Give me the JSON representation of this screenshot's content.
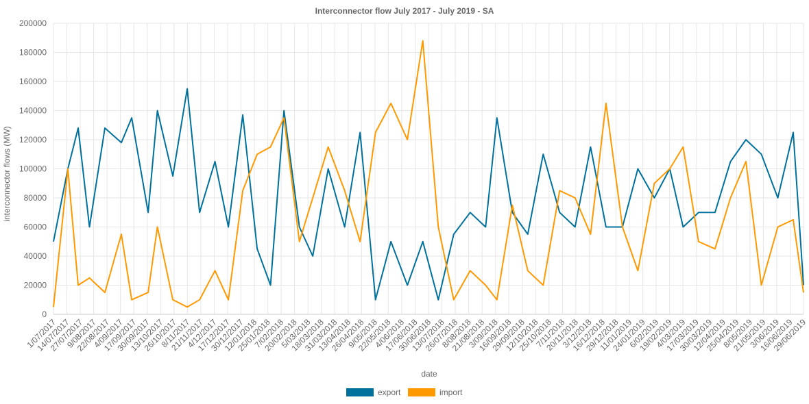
{
  "chart_data": {
    "type": "line",
    "title": "Interconnector flow July 2017 - July 2019 - SA",
    "xlabel": "date",
    "ylabel": "interconnector flows (MW)",
    "ylim": [
      0,
      200000
    ],
    "yticks": [
      "0",
      "20000",
      "40000",
      "60000",
      "80000",
      "100000",
      "120000",
      "140000",
      "160000",
      "180000",
      "200000"
    ],
    "x_start": "2017-07-01",
    "x_end": "2019-06-30",
    "xticks": [
      "1/07/2017",
      "14/07/2017",
      "27/07/2017",
      "9/08/2017",
      "22/08/2017",
      "4/09/2017",
      "17/09/2017",
      "30/09/2017",
      "13/10/2017",
      "26/10/2017",
      "8/11/2017",
      "21/11/2017",
      "4/12/2017",
      "17/12/2017",
      "30/12/2017",
      "12/01/2018",
      "25/01/2018",
      "7/02/2018",
      "20/02/2018",
      "5/03/2018",
      "18/03/2018",
      "31/03/2018",
      "13/04/2018",
      "26/04/2018",
      "9/05/2018",
      "22/05/2018",
      "4/06/2018",
      "17/06/2018",
      "30/06/2018",
      "13/07/2018",
      "26/07/2018",
      "8/08/2018",
      "21/08/2018",
      "3/09/2018",
      "16/09/2018",
      "29/09/2018",
      "12/10/2018",
      "25/10/2018",
      "7/11/2018",
      "20/11/2018",
      "3/12/2018",
      "16/12/2018",
      "29/12/2018",
      "11/01/2019",
      "24/01/2019",
      "6/02/2019",
      "19/02/2019",
      "4/03/2019",
      "17/03/2019",
      "30/03/2019",
      "12/04/2019",
      "25/04/2019",
      "8/05/2019",
      "21/05/2019",
      "3/06/2019",
      "16/06/2019",
      "29/06/2019"
    ],
    "legend_position": "bottom",
    "grid": true,
    "series": [
      {
        "name": "export",
        "color": "#00719c",
        "x": [
          "2017-07-01",
          "2017-07-15",
          "2017-07-25",
          "2017-08-05",
          "2017-08-20",
          "2017-09-05",
          "2017-09-15",
          "2017-10-01",
          "2017-10-10",
          "2017-10-25",
          "2017-11-08",
          "2017-11-20",
          "2017-12-05",
          "2017-12-18",
          "2018-01-01",
          "2018-01-15",
          "2018-01-28",
          "2018-02-10",
          "2018-02-25",
          "2018-03-10",
          "2018-03-25",
          "2018-04-10",
          "2018-04-25",
          "2018-05-10",
          "2018-05-25",
          "2018-06-10",
          "2018-06-25",
          "2018-07-10",
          "2018-07-25",
          "2018-08-10",
          "2018-08-25",
          "2018-09-05",
          "2018-09-20",
          "2018-10-05",
          "2018-10-20",
          "2018-11-05",
          "2018-11-20",
          "2018-12-05",
          "2018-12-20",
          "2019-01-05",
          "2019-01-20",
          "2019-02-05",
          "2019-02-20",
          "2019-03-05",
          "2019-03-20",
          "2019-04-05",
          "2019-04-20",
          "2019-05-05",
          "2019-05-20",
          "2019-06-05",
          "2019-06-20",
          "2019-06-30"
        ],
        "y": [
          50000,
          100000,
          128000,
          60000,
          128000,
          118000,
          135000,
          70000,
          140000,
          95000,
          155000,
          70000,
          105000,
          60000,
          137000,
          45000,
          20000,
          140000,
          60000,
          40000,
          100000,
          60000,
          125000,
          10000,
          50000,
          20000,
          50000,
          10000,
          55000,
          70000,
          60000,
          135000,
          70000,
          55000,
          110000,
          70000,
          60000,
          115000,
          60000,
          60000,
          100000,
          80000,
          100000,
          60000,
          70000,
          70000,
          105000,
          120000,
          110000,
          80000,
          125000,
          20000
        ]
      },
      {
        "name": "import",
        "color": "#ff9900",
        "x": [
          "2017-07-01",
          "2017-07-15",
          "2017-07-25",
          "2017-08-05",
          "2017-08-20",
          "2017-09-05",
          "2017-09-15",
          "2017-10-01",
          "2017-10-10",
          "2017-10-25",
          "2017-11-08",
          "2017-11-20",
          "2017-12-05",
          "2017-12-18",
          "2018-01-01",
          "2018-01-15",
          "2018-01-28",
          "2018-02-10",
          "2018-02-25",
          "2018-03-10",
          "2018-03-25",
          "2018-04-10",
          "2018-04-25",
          "2018-05-10",
          "2018-05-25",
          "2018-06-10",
          "2018-06-25",
          "2018-07-10",
          "2018-07-25",
          "2018-08-10",
          "2018-08-25",
          "2018-09-05",
          "2018-09-20",
          "2018-10-05",
          "2018-10-20",
          "2018-11-05",
          "2018-11-20",
          "2018-12-05",
          "2018-12-20",
          "2019-01-05",
          "2019-01-20",
          "2019-02-05",
          "2019-02-20",
          "2019-03-05",
          "2019-03-20",
          "2019-04-05",
          "2019-04-20",
          "2019-05-05",
          "2019-05-20",
          "2019-06-05",
          "2019-06-20",
          "2019-06-30"
        ],
        "y": [
          5000,
          100000,
          20000,
          25000,
          15000,
          55000,
          10000,
          15000,
          60000,
          10000,
          5000,
          10000,
          30000,
          10000,
          85000,
          110000,
          115000,
          135000,
          50000,
          80000,
          115000,
          85000,
          50000,
          125000,
          145000,
          120000,
          188000,
          60000,
          10000,
          30000,
          20000,
          10000,
          75000,
          30000,
          20000,
          85000,
          80000,
          55000,
          145000,
          60000,
          30000,
          90000,
          100000,
          115000,
          50000,
          45000,
          80000,
          105000,
          20000,
          60000,
          65000,
          15000
        ]
      }
    ]
  }
}
